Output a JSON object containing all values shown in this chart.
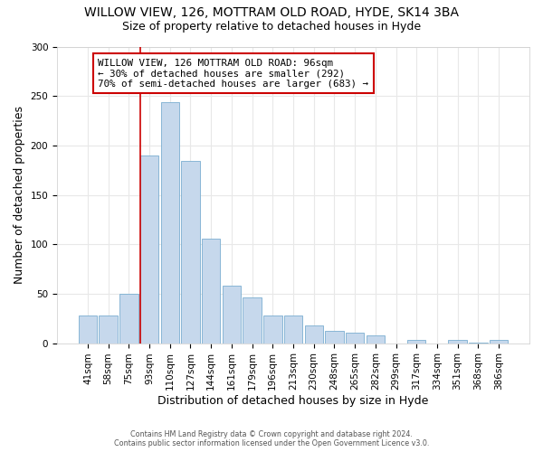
{
  "title": "WILLOW VIEW, 126, MOTTRAM OLD ROAD, HYDE, SK14 3BA",
  "subtitle": "Size of property relative to detached houses in Hyde",
  "xlabel": "Distribution of detached houses by size in Hyde",
  "ylabel": "Number of detached properties",
  "bar_color": "#c6d8ec",
  "bar_edge_color": "#7aaed0",
  "marker_line_color": "#cc0000",
  "categories": [
    "41sqm",
    "58sqm",
    "75sqm",
    "93sqm",
    "110sqm",
    "127sqm",
    "144sqm",
    "161sqm",
    "179sqm",
    "196sqm",
    "213sqm",
    "230sqm",
    "248sqm",
    "265sqm",
    "282sqm",
    "299sqm",
    "317sqm",
    "334sqm",
    "351sqm",
    "368sqm",
    "386sqm"
  ],
  "values": [
    28,
    28,
    50,
    190,
    244,
    184,
    106,
    58,
    46,
    28,
    28,
    18,
    12,
    11,
    8,
    0,
    3,
    0,
    3,
    1,
    3
  ],
  "ylim": [
    0,
    300
  ],
  "yticks": [
    0,
    50,
    100,
    150,
    200,
    250,
    300
  ],
  "marker_bar_index": 3,
  "annotation_line1": "WILLOW VIEW, 126 MOTTRAM OLD ROAD: 96sqm",
  "annotation_line2": "← 30% of detached houses are smaller (292)",
  "annotation_line3": "70% of semi-detached houses are larger (683) →",
  "bg_color": "#ffffff",
  "grid_color": "#e8e8e8",
  "footnote1": "Contains HM Land Registry data © Crown copyright and database right 2024.",
  "footnote2": "Contains public sector information licensed under the Open Government Licence v3.0.",
  "title_fontsize": 10,
  "subtitle_fontsize": 9,
  "tick_fontsize": 7.5,
  "axis_label_fontsize": 9
}
